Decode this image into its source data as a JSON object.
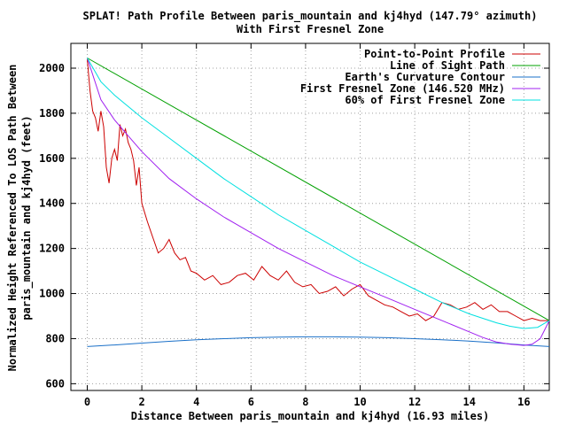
{
  "chart_data": {
    "type": "line",
    "title": "SPLAT! Path Profile Between paris_mountain and kj4hyd (147.79° azimuth)",
    "subtitle": "With First Fresnel Zone",
    "xlabel": "Distance Between paris_mountain and kj4hyd (16.93 miles)",
    "ylabel_line1": "Normalized Height Referenced To LOS Path Between",
    "ylabel_line2": "paris_mountain and kj4hyd (feet)",
    "xlim": [
      -0.6,
      16.93
    ],
    "ylim": [
      570,
      2110
    ],
    "xticks": [
      0,
      2,
      4,
      6,
      8,
      10,
      12,
      14,
      16
    ],
    "yticks": [
      600,
      800,
      1000,
      1200,
      1400,
      1600,
      1800,
      2000
    ],
    "grid": true,
    "legend_position": "top-right",
    "series": [
      {
        "name": "Point-to-Point Profile",
        "color": "#cc0000",
        "x": [
          0,
          0.1,
          0.2,
          0.3,
          0.4,
          0.5,
          0.6,
          0.7,
          0.8,
          0.9,
          1.0,
          1.1,
          1.2,
          1.3,
          1.4,
          1.5,
          1.6,
          1.7,
          1.8,
          1.9,
          2.0,
          2.2,
          2.4,
          2.6,
          2.8,
          3.0,
          3.2,
          3.4,
          3.6,
          3.8,
          4.0,
          4.3,
          4.6,
          4.9,
          5.2,
          5.5,
          5.8,
          6.1,
          6.4,
          6.7,
          7.0,
          7.3,
          7.6,
          7.9,
          8.2,
          8.5,
          8.8,
          9.1,
          9.4,
          9.7,
          10.0,
          10.3,
          10.6,
          10.9,
          11.2,
          11.5,
          11.8,
          12.1,
          12.4,
          12.7,
          13.0,
          13.3,
          13.6,
          13.9,
          14.2,
          14.5,
          14.8,
          15.1,
          15.4,
          15.7,
          16.0,
          16.3,
          16.6,
          16.93
        ],
        "values": [
          2040,
          1900,
          1810,
          1780,
          1720,
          1810,
          1740,
          1560,
          1490,
          1600,
          1640,
          1590,
          1750,
          1700,
          1730,
          1670,
          1640,
          1590,
          1480,
          1560,
          1400,
          1320,
          1250,
          1180,
          1200,
          1240,
          1180,
          1150,
          1160,
          1100,
          1090,
          1060,
          1080,
          1040,
          1050,
          1080,
          1090,
          1060,
          1120,
          1080,
          1060,
          1100,
          1050,
          1030,
          1040,
          1000,
          1010,
          1030,
          990,
          1020,
          1040,
          990,
          970,
          950,
          940,
          920,
          900,
          910,
          880,
          900,
          960,
          950,
          930,
          940,
          960,
          930,
          950,
          920,
          920,
          900,
          880,
          890,
          880,
          880
        ]
      },
      {
        "name": "Line of Sight Path",
        "color": "#00a000",
        "x": [
          0,
          16.93
        ],
        "values": [
          2045,
          880
        ]
      },
      {
        "name": "Earth's Curvature Contour",
        "color": "#1a70c8",
        "x": [
          0,
          1,
          2,
          3,
          4,
          5,
          6,
          7,
          8,
          9,
          10,
          11,
          12,
          13,
          14,
          15,
          16,
          16.93
        ],
        "values": [
          765,
          772,
          780,
          788,
          795,
          800,
          804,
          807,
          808,
          808,
          807,
          804,
          800,
          795,
          789,
          781,
          772,
          765
        ]
      },
      {
        "name": "First Fresnel Zone (146.520 MHz)",
        "color": "#a020f0",
        "x": [
          0,
          0.5,
          1,
          1.5,
          2,
          3,
          4,
          5,
          6,
          7,
          8,
          9,
          10,
          11,
          12,
          13,
          14,
          14.5,
          15,
          15.5,
          16,
          16.3,
          16.6,
          16.93
        ],
        "values": [
          2045,
          1860,
          1770,
          1700,
          1630,
          1510,
          1420,
          1340,
          1270,
          1200,
          1140,
          1080,
          1030,
          980,
          930,
          880,
          830,
          805,
          785,
          775,
          770,
          775,
          800,
          880
        ]
      },
      {
        "name": "60% of First Fresnel Zone",
        "color": "#00e0e0",
        "x": [
          0,
          0.5,
          1,
          2,
          3,
          4,
          5,
          6,
          7,
          8,
          9,
          10,
          11,
          12,
          13,
          14,
          15,
          15.5,
          16,
          16.5,
          16.93
        ],
        "values": [
          2045,
          1940,
          1880,
          1780,
          1690,
          1600,
          1510,
          1430,
          1350,
          1280,
          1210,
          1140,
          1080,
          1020,
          960,
          910,
          870,
          855,
          845,
          850,
          880
        ]
      }
    ]
  }
}
